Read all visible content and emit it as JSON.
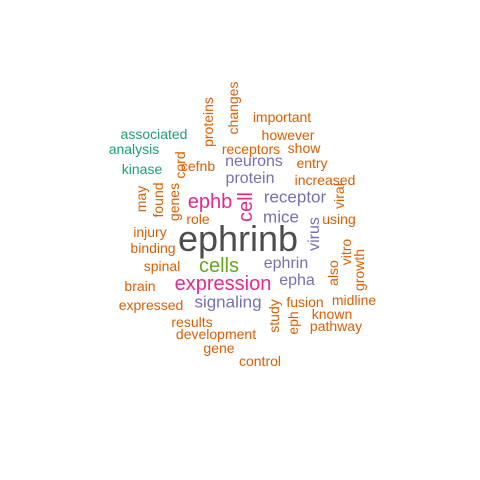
{
  "palette": {
    "dark_gray": "#4d4d4d",
    "magenta": "#e7298a",
    "green": "#66a61e",
    "purple": "#7570b3",
    "orange": "#d95f02",
    "teal": "#1b9e77"
  },
  "words": [
    {
      "text": "ephrinb",
      "color": "dark_gray",
      "vertical": false
    },
    {
      "text": "expression",
      "color": "magenta",
      "vertical": false
    },
    {
      "text": "cells",
      "color": "green",
      "vertical": false
    },
    {
      "text": "ephb",
      "color": "magenta",
      "vertical": false
    },
    {
      "text": "cell",
      "color": "magenta",
      "vertical": true
    },
    {
      "text": "receptor",
      "color": "purple",
      "vertical": false
    },
    {
      "text": "signaling",
      "color": "purple",
      "vertical": false
    },
    {
      "text": "mice",
      "color": "purple",
      "vertical": false
    },
    {
      "text": "ephrin",
      "color": "purple",
      "vertical": false
    },
    {
      "text": "protein",
      "color": "purple",
      "vertical": false
    },
    {
      "text": "neurons",
      "color": "purple",
      "vertical": false
    },
    {
      "text": "epha",
      "color": "purple",
      "vertical": false
    },
    {
      "text": "virus",
      "color": "purple",
      "vertical": true
    },
    {
      "text": "associated",
      "color": "teal",
      "vertical": false
    },
    {
      "text": "analysis",
      "color": "teal",
      "vertical": false
    },
    {
      "text": "kinase",
      "color": "teal",
      "vertical": false
    },
    {
      "text": "important",
      "color": "orange",
      "vertical": false
    },
    {
      "text": "however",
      "color": "orange",
      "vertical": false
    },
    {
      "text": "receptors",
      "color": "orange",
      "vertical": false
    },
    {
      "text": "show",
      "color": "orange",
      "vertical": false
    },
    {
      "text": "entry",
      "color": "orange",
      "vertical": false
    },
    {
      "text": "increased",
      "color": "orange",
      "vertical": false
    },
    {
      "text": "using",
      "color": "orange",
      "vertical": false
    },
    {
      "text": "cefnb",
      "color": "orange",
      "vertical": false
    },
    {
      "text": "role",
      "color": "orange",
      "vertical": false
    },
    {
      "text": "injury",
      "color": "orange",
      "vertical": false
    },
    {
      "text": "binding",
      "color": "orange",
      "vertical": false
    },
    {
      "text": "spinal",
      "color": "orange",
      "vertical": false
    },
    {
      "text": "brain",
      "color": "orange",
      "vertical": false
    },
    {
      "text": "expressed",
      "color": "orange",
      "vertical": false
    },
    {
      "text": "results",
      "color": "orange",
      "vertical": false
    },
    {
      "text": "development",
      "color": "orange",
      "vertical": false
    },
    {
      "text": "gene",
      "color": "orange",
      "vertical": false
    },
    {
      "text": "control",
      "color": "orange",
      "vertical": false
    },
    {
      "text": "fusion",
      "color": "orange",
      "vertical": false
    },
    {
      "text": "midline",
      "color": "orange",
      "vertical": false
    },
    {
      "text": "known",
      "color": "orange",
      "vertical": false
    },
    {
      "text": "pathway",
      "color": "orange",
      "vertical": false
    },
    {
      "text": "proteins",
      "color": "orange",
      "vertical": true
    },
    {
      "text": "changes",
      "color": "orange",
      "vertical": true
    },
    {
      "text": "cord",
      "color": "orange",
      "vertical": true
    },
    {
      "text": "genes",
      "color": "orange",
      "vertical": true
    },
    {
      "text": "found",
      "color": "orange",
      "vertical": true
    },
    {
      "text": "may",
      "color": "orange",
      "vertical": true
    },
    {
      "text": "viral",
      "color": "orange",
      "vertical": true
    },
    {
      "text": "vitro",
      "color": "orange",
      "vertical": true
    },
    {
      "text": "also",
      "color": "orange",
      "vertical": true
    },
    {
      "text": "growth",
      "color": "orange",
      "vertical": true
    },
    {
      "text": "study",
      "color": "orange",
      "vertical": true
    },
    {
      "text": "eph",
      "color": "orange",
      "vertical": true
    }
  ]
}
